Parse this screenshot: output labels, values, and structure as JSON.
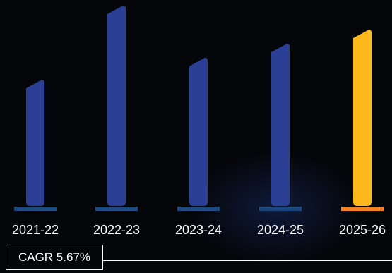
{
  "chart_data": {
    "type": "bar",
    "categories": [
      "2021-22",
      "2022-23",
      "2023-24",
      "2024-25",
      "2025-26"
    ],
    "values": [
      63,
      100,
      74,
      81,
      88
    ],
    "ylim": [
      0,
      100
    ],
    "highlight_index": 4,
    "colors": {
      "bar": "#2b3f95",
      "bar_highlight": "#ffb81c",
      "base": "#1c4a80",
      "base_highlight": "#f58220",
      "text": "#ffffff"
    }
  },
  "cagr": {
    "label": "CAGR 5.67%"
  }
}
